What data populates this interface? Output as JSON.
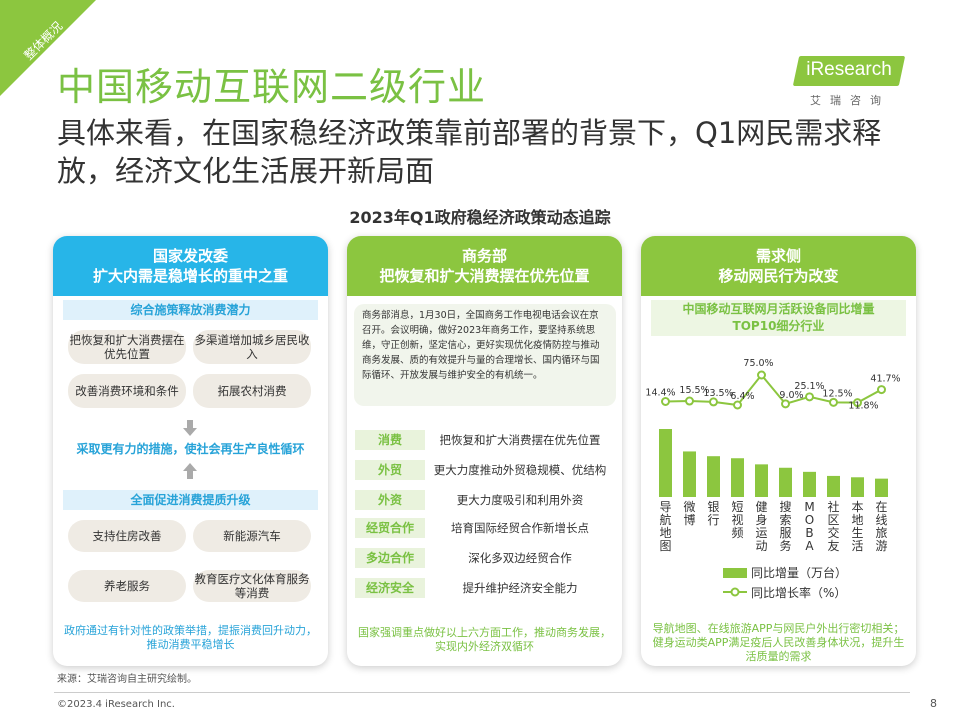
{
  "corner_tag": "整体概况",
  "title": "中国移动互联网二级行业",
  "subtitle": "具体来看，在国家稳经济政策靠前部署的背景下，Q1网民需求释放，经济文化生活展开新局面",
  "logo": {
    "name": "iResearch",
    "sub": "艾瑞咨询"
  },
  "section_title": "2023年Q1政府稳经济政策动态追踪",
  "panel1": {
    "head_line1": "国家发改委",
    "head_line2": "扩大内需是稳增长的重中之重",
    "block1_label": "综合施策释放消费潜力",
    "block1_items": [
      "把恢复和扩大消费摆在优先位置",
      "多渠道增加城乡居民收入",
      "改善消费环境和条件",
      "拓展农村消费"
    ],
    "mid": "采取更有力的措施，使社会再生产良性循环",
    "block2_label": "全面促进消费提质升级",
    "block2_items": [
      "支持住房改善",
      "新能源汽车",
      "养老服务",
      "教育医疗文化体育服务等消费"
    ],
    "foot": "政府通过有针对性的政策举措，提振消费回升动力，推动消费平稳增长"
  },
  "panel2": {
    "head_line1": "商务部",
    "head_line2": "把恢复和扩大消费摆在优先位置",
    "quote": "商务部消息，1月30日，全国商务工作电视电话会议在京召开。会议明确，做好2023年商务工作，要坚持系统思维，守正创新，坚定信心，更好实现优化疫情防控与推动商务发展、质的有效提升与量的合理增长、国内循环与国际循环、开放发展与维护安全的有机统一。",
    "items": [
      {
        "kw": "消费",
        "desc": "把恢复和扩大消费摆在优先位置"
      },
      {
        "kw": "外贸",
        "desc": "更大力度推动外贸稳规模、优结构"
      },
      {
        "kw": "外资",
        "desc": "更大力度吸引和利用外资"
      },
      {
        "kw": "经贸合作",
        "desc": "培育国际经贸合作新增长点"
      },
      {
        "kw": "多边合作",
        "desc": "深化多双边经贸合作"
      },
      {
        "kw": "经济安全",
        "desc": "提升维护经济安全能力"
      }
    ],
    "foot": "国家强调重点做好以上六方面工作，推动商务发展，实现内外经济双循环"
  },
  "panel3": {
    "head_line1": "需求侧",
    "head_line2": "移动网民行为改变",
    "chart_title_line1": "中国移动互联网月活跃设备同比增量",
    "chart_title_line2": "TOP10细分行业",
    "legend_bar": "同比增量（万台）",
    "legend_line": "同比增长率（%）",
    "foot": "导航地图、在线旅游APP与网民户外出行密切相关；健身运动类APP满足疫后人民改善身体状况，提升生活质量的需求"
  },
  "chart_data": {
    "type": "bar",
    "title": "中国移动互联网月活跃设备同比增量TOP10细分行业",
    "categories": [
      "导航地图",
      "微博",
      "银行",
      "短视频",
      "健身运动",
      "搜索服务",
      "MOBA",
      "社区交友",
      "本地生活",
      "在线旅游"
    ],
    "series": [
      {
        "name": "同比增量（万台）",
        "type": "bar",
        "values": [
          100,
          67,
          60,
          57,
          48,
          43,
          37,
          31,
          29,
          27
        ],
        "color": "#8cc63f"
      },
      {
        "name": "同比增长率（%）",
        "type": "line",
        "values": [
          14.4,
          15.5,
          13.5,
          6.4,
          75.0,
          9.0,
          25.1,
          12.5,
          11.8,
          41.7
        ],
        "color": "#8cc63f"
      }
    ],
    "line_labels": [
      "14.4%",
      "15.5%",
      "13.5%",
      "6.4%",
      "75.0%",
      "9.0%",
      "25.1%",
      "12.5%",
      "11.8%",
      "41.7%"
    ],
    "legend": "bottom"
  },
  "source": "来源：艾瑞咨询自主研究绘制。",
  "copyright": "©2023.4 iResearch Inc.",
  "page_number": "8"
}
